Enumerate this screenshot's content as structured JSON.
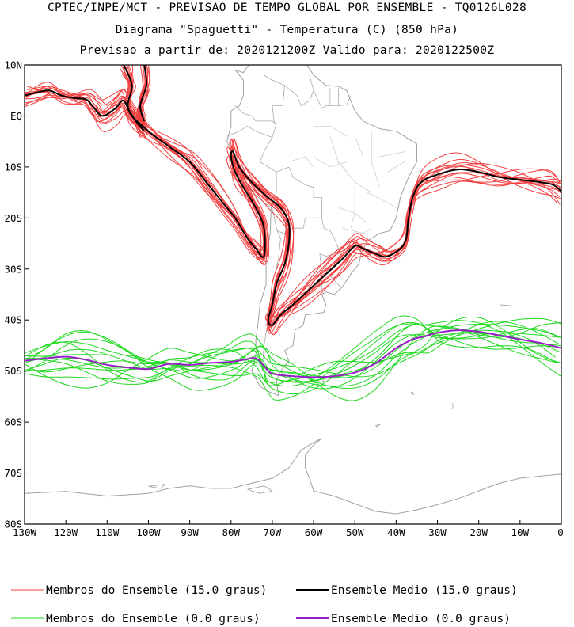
{
  "titles": {
    "line1": "CPTEC/INPE/MCT - PREVISAO DE TEMPO GLOBAL POR ENSEMBLE - TQ0126L028",
    "line2": "Diagrama \"Spaguetti\" - Temperatura (C) (850 hPa)",
    "line3": "Previsao a partir de: 2020121200Z  Valido para: 2020122500Z"
  },
  "colors": {
    "members_15": "#f44040",
    "mean_15": "#000000",
    "members_0": "#1fd81f",
    "mean_0": "#9a1ec8",
    "coast": "#a0a0a0"
  },
  "chart_data": {
    "type": "line",
    "title": "Diagrama \"Spaguetti\" - Temperatura (C) (850 hPa)",
    "xlabel": "",
    "ylabel": "",
    "xlim": [
      -130,
      0
    ],
    "ylim": [
      -80,
      10
    ],
    "grid": false,
    "legend": "bottom",
    "x_ticks": [
      {
        "v": -130,
        "label": "130W"
      },
      {
        "v": -120,
        "label": "120W"
      },
      {
        "v": -110,
        "label": "110W"
      },
      {
        "v": -100,
        "label": "100W"
      },
      {
        "v": -90,
        "label": "90W"
      },
      {
        "v": -80,
        "label": "80W"
      },
      {
        "v": -70,
        "label": "70W"
      },
      {
        "v": -60,
        "label": "60W"
      },
      {
        "v": -50,
        "label": "50W"
      },
      {
        "v": -40,
        "label": "40W"
      },
      {
        "v": -30,
        "label": "30W"
      },
      {
        "v": -20,
        "label": "20W"
      },
      {
        "v": -10,
        "label": "10W"
      },
      {
        "v": 0,
        "label": "0"
      }
    ],
    "y_ticks": [
      {
        "v": 10,
        "label": "10N"
      },
      {
        "v": 0,
        "label": "EQ"
      },
      {
        "v": -10,
        "label": "10S"
      },
      {
        "v": -20,
        "label": "20S"
      },
      {
        "v": -30,
        "label": "30S"
      },
      {
        "v": -40,
        "label": "40S"
      },
      {
        "v": -50,
        "label": "50S"
      },
      {
        "v": -60,
        "label": "60S"
      },
      {
        "v": -70,
        "label": "70S"
      },
      {
        "v": -80,
        "label": "80S"
      }
    ],
    "series": [
      {
        "name": "Ensemble Medio (15.0 graus)",
        "role": "mean15",
        "segments": [
          [
            [
              -130,
              4
            ],
            [
              -127,
              4.6
            ],
            [
              -124,
              5
            ],
            [
              -121,
              4
            ],
            [
              -118,
              3.5
            ],
            [
              -115,
              3.2
            ],
            [
              -113,
              1.4
            ],
            [
              -111,
              0
            ],
            [
              -108,
              1.5
            ],
            [
              -106,
              3
            ],
            [
              -104,
              0
            ],
            [
              -100,
              -3
            ],
            [
              -95,
              -6
            ],
            [
              -90,
              -9
            ],
            [
              -86,
              -13
            ],
            [
              -82,
              -17
            ],
            [
              -79,
              -20
            ],
            [
              -76,
              -24
            ],
            [
              -74,
              -26
            ],
            [
              -72,
              -27.5
            ],
            [
              -72,
              -22
            ],
            [
              -74,
              -18
            ],
            [
              -77,
              -14
            ],
            [
              -79,
              -11
            ],
            [
              -80,
              -8
            ],
            [
              -79.5,
              -7
            ],
            [
              -78,
              -10
            ],
            [
              -75,
              -13
            ],
            [
              -71,
              -16
            ],
            [
              -68,
              -18
            ],
            [
              -66,
              -21
            ],
            [
              -66,
              -25
            ],
            [
              -67,
              -29
            ],
            [
              -69,
              -33
            ],
            [
              -70,
              -37
            ],
            [
              -71,
              -40
            ],
            [
              -70,
              -41
            ],
            [
              -68,
              -39
            ],
            [
              -65,
              -37
            ],
            [
              -61,
              -34
            ],
            [
              -57,
              -31
            ],
            [
              -53,
              -28
            ],
            [
              -50,
              -25.5
            ],
            [
              -48,
              -26
            ],
            [
              -45,
              -27
            ],
            [
              -42,
              -27.5
            ],
            [
              -38,
              -25
            ],
            [
              -37,
              -20
            ],
            [
              -36,
              -16
            ],
            [
              -34,
              -13
            ],
            [
              -30,
              -11.5
            ],
            [
              -25,
              -10.5
            ],
            [
              -20,
              -11
            ],
            [
              -15,
              -12
            ],
            [
              -10,
              -12.5
            ],
            [
              -5,
              -13
            ],
            [
              -2,
              -13.5
            ],
            [
              0,
              -14.8
            ]
          ],
          [
            [
              -106,
              10
            ],
            [
              -104,
              6
            ],
            [
              -105,
              2
            ],
            [
              -103,
              -1
            ],
            [
              -101,
              -3
            ]
          ],
          [
            [
              -101,
              10
            ],
            [
              -100.5,
              6
            ],
            [
              -102,
              2
            ],
            [
              -101,
              -1
            ]
          ]
        ]
      },
      {
        "name": "Ensemble Medio (0.0 graus)",
        "role": "mean0",
        "segments": [
          [
            [
              -130,
              -48
            ],
            [
              -125,
              -47.5
            ],
            [
              -120,
              -47.2
            ],
            [
              -115,
              -47.8
            ],
            [
              -110,
              -48.8
            ],
            [
              -105,
              -49.3
            ],
            [
              -100,
              -49.6
            ],
            [
              -95,
              -48.6
            ],
            [
              -90,
              -48.8
            ],
            [
              -85,
              -48.4
            ],
            [
              -80,
              -48.2
            ],
            [
              -77,
              -47.8
            ],
            [
              -74,
              -47.5
            ],
            [
              -72,
              -49
            ],
            [
              -70,
              -50.5
            ],
            [
              -65,
              -51
            ],
            [
              -60,
              -51.2
            ],
            [
              -55,
              -51
            ],
            [
              -50,
              -50.3
            ],
            [
              -45,
              -48.5
            ],
            [
              -40,
              -45.5
            ],
            [
              -36,
              -43.8
            ],
            [
              -33,
              -43.2
            ],
            [
              -30,
              -42.5
            ],
            [
              -25,
              -42
            ],
            [
              -20,
              -42.3
            ],
            [
              -15,
              -43
            ],
            [
              -10,
              -43.8
            ],
            [
              -5,
              -44.5
            ],
            [
              0,
              -45.5
            ]
          ]
        ]
      }
    ],
    "annotations": []
  },
  "legend": {
    "items": [
      {
        "label": "Membros do Ensemble (15.0 graus)",
        "color": "#f44040",
        "width": 1
      },
      {
        "label": "Ensemble Medio (15.0 graus)",
        "color": "#000000",
        "width": 2
      },
      {
        "label": "Membros do Ensemble (0.0 graus)",
        "color": "#1fd81f",
        "width": 1
      },
      {
        "label": "Ensemble Medio (0.0 graus)",
        "color": "#9a1ec8",
        "width": 2
      }
    ]
  }
}
